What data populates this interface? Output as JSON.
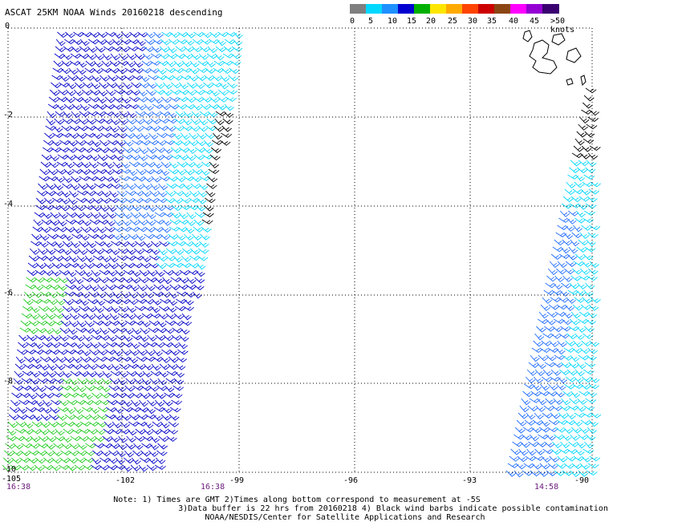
{
  "title": "ASCAT 25KM NOAA Winds 20160218 descending",
  "legend": {
    "labels": [
      "0",
      "5",
      "10",
      "15",
      "20",
      "25",
      "30",
      "35",
      "40",
      "45",
      ">50 knots"
    ],
    "colors": [
      "#7f7f7f",
      "#00d8ff",
      "#1e90ff",
      "#0000d0",
      "#00b000",
      "#ffe600",
      "#ffaa00",
      "#ff4400",
      "#cc0000",
      "#8b4513",
      "#ff00ff",
      "#9400d3",
      "#3a0070"
    ]
  },
  "axes": {
    "lat_labels": [
      "0",
      "-2",
      "-4",
      "-6",
      "-8",
      "-10"
    ],
    "lon_labels": [
      "-105",
      "-102",
      "-99",
      "-96",
      "-93",
      "-90"
    ]
  },
  "times": [
    "16:38",
    "16:38",
    "14:58"
  ],
  "notes": [
    "Note: 1) Times are GMT 2)Times along bottom correspond to measurement at -5S",
    "3)Data buffer is 22 hrs from 20160218 4) Black wind barbs indicate possible contamination",
    "NOAA/NESDIS/Center for Satellite Applications and Research"
  ],
  "colors": {
    "grid": "#000000",
    "swath_blue_dark": "#0000c8",
    "swath_blue": "#1e6cff",
    "swath_cyan": "#00d8ff",
    "swath_green": "#22cc22",
    "contaminated": "#000000",
    "time_label": "#6a1a7a"
  }
}
